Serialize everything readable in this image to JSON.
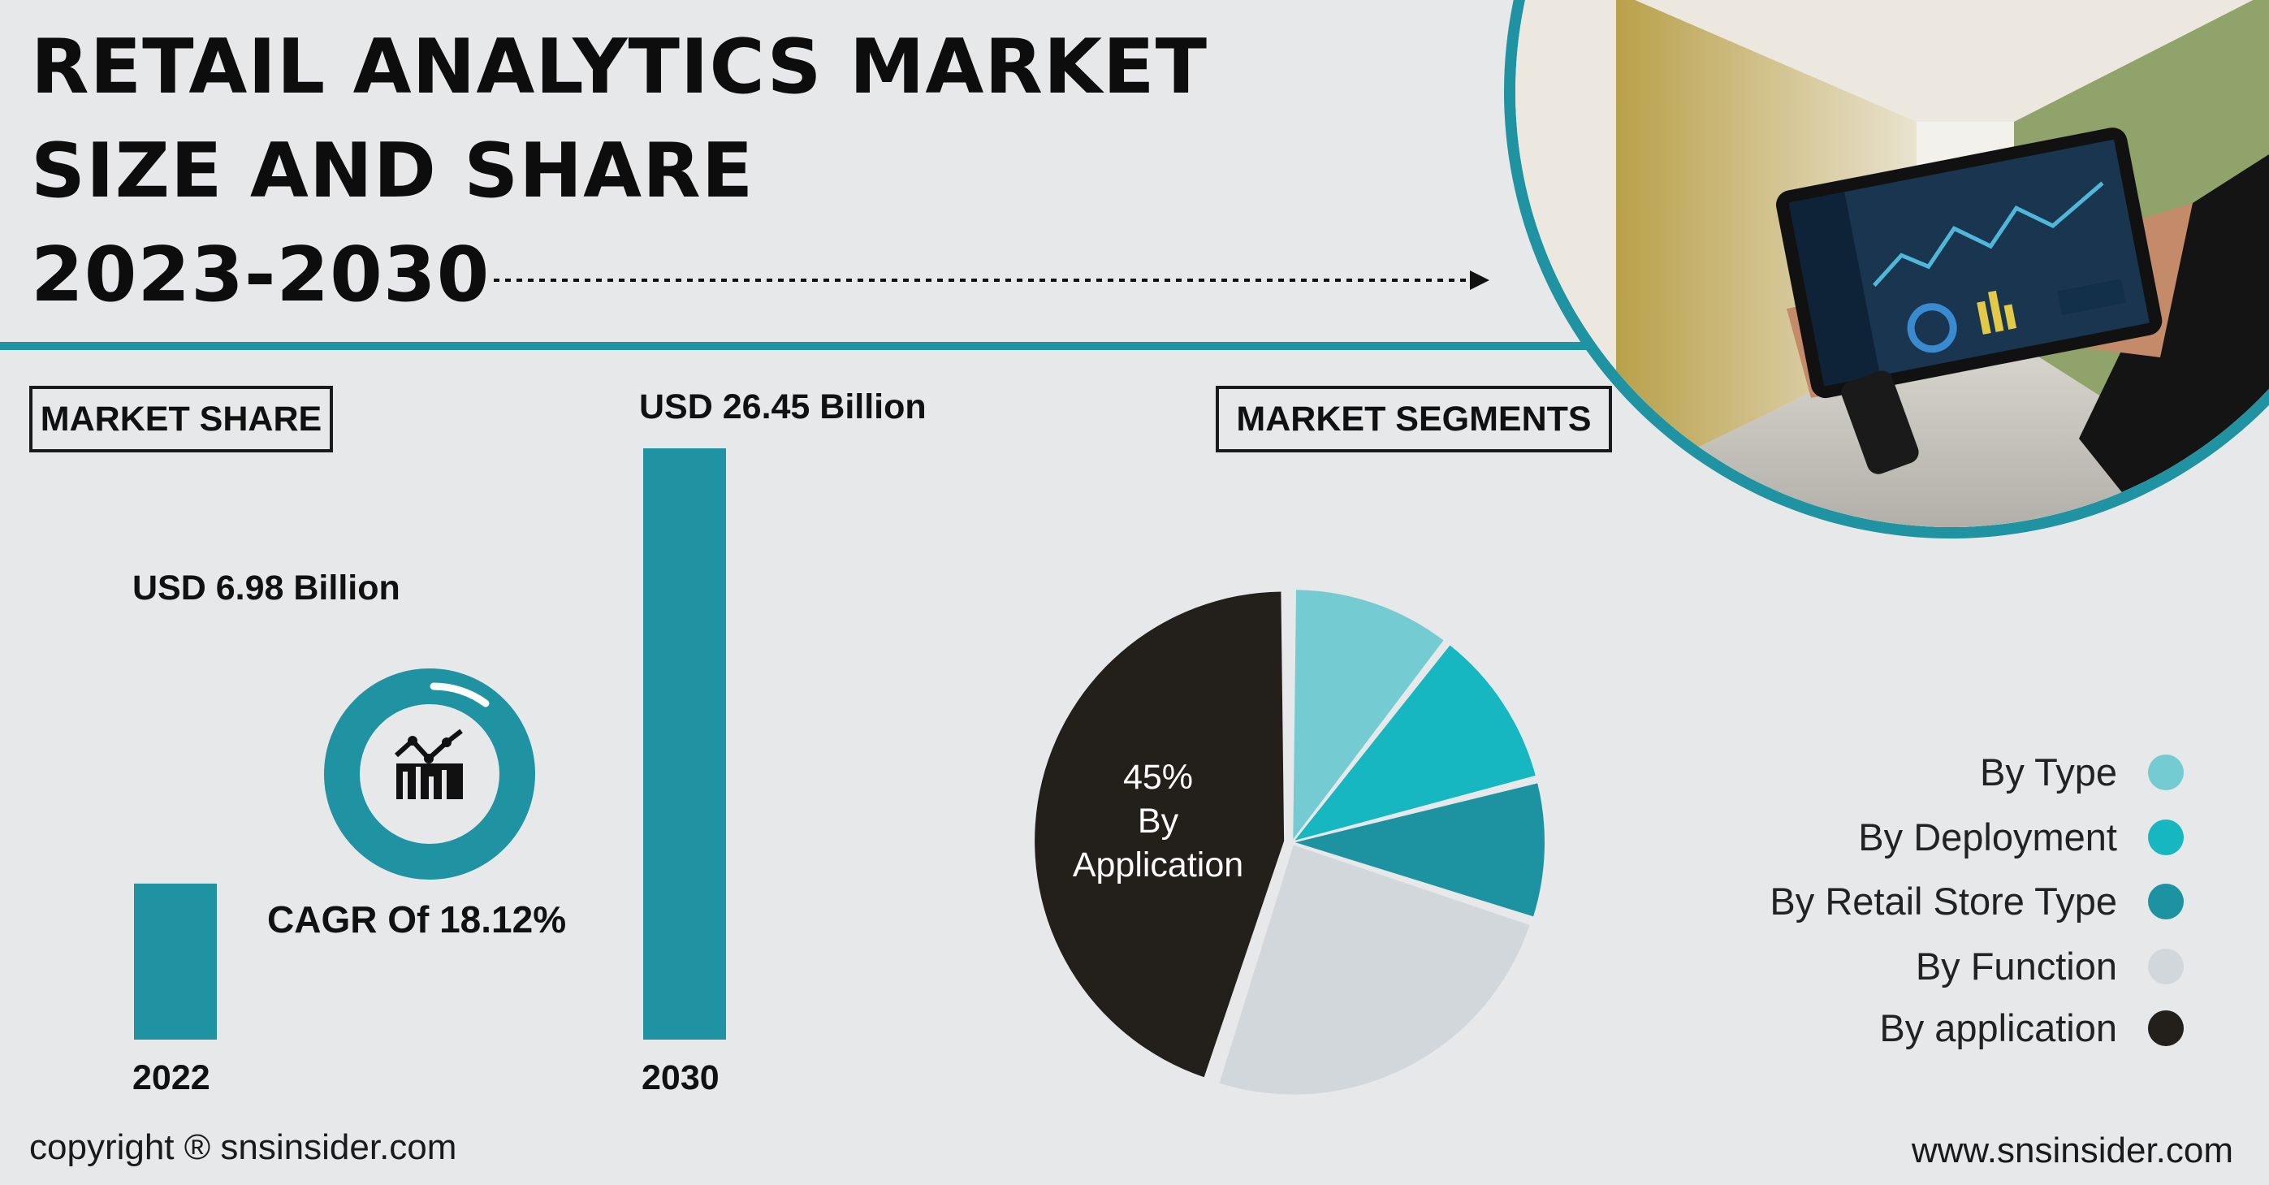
{
  "title": {
    "line1": "RETAIL ANALYTICS MARKET",
    "line2": "SIZE AND SHARE",
    "line3": "2023-2030"
  },
  "labels": {
    "market_share": "MARKET SHARE",
    "market_segments": "MARKET SEGMENTS",
    "cagr": "CAGR Of 18.12%"
  },
  "footer": {
    "copyright": "copyright ® snsinsider.com",
    "website": "www.snsinsider.com"
  },
  "icons": [
    "bar-line-chart-icon",
    "cagr-ring-icon",
    "tablet-photo-image"
  ],
  "colors": {
    "teal": "#1f93a1",
    "light_teal": "#74ccd2",
    "cyan": "#17b7c2",
    "mid_teal": "#1d93a2",
    "light_gray": "#d2d7dc",
    "dark": "#231f1a",
    "background": "#e7e8ea"
  },
  "chart_data": [
    {
      "type": "bar",
      "categories": [
        "2022",
        "2030"
      ],
      "values": [
        6.98,
        26.45
      ],
      "value_labels": [
        "USD 6.98 Billion",
        "USD 26.45 Billion"
      ],
      "ylabel": "",
      "ylim": [
        0,
        26.45
      ],
      "grid": false
    },
    {
      "type": "pie",
      "slices": [
        {
          "label": "By Type",
          "value": 10.5,
          "color": "#74ccd2"
        },
        {
          "label": "By Deployment",
          "value": 10.5,
          "color": "#17b7c2"
        },
        {
          "label": "By Retail Store Type",
          "value": 9,
          "color": "#1d93a2"
        },
        {
          "label": "By Function",
          "value": 25,
          "color": "#d2d7dc"
        },
        {
          "label": "By application",
          "value": 45,
          "color": "#231f1a"
        }
      ],
      "highlight": {
        "percent": "45%",
        "line1": "By",
        "line2": "Application"
      },
      "legend_position": "right"
    }
  ]
}
